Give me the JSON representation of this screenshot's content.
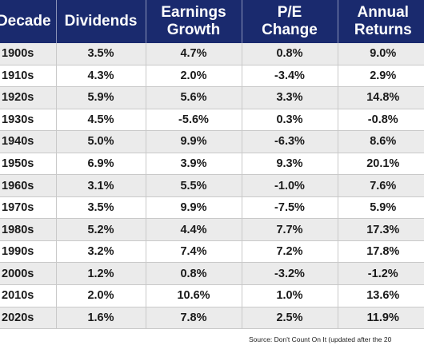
{
  "table": {
    "headers": [
      {
        "line1": "Decade",
        "line2": ""
      },
      {
        "line1": "Dividends",
        "line2": ""
      },
      {
        "line1": "Earnings",
        "line2": "Growth"
      },
      {
        "line1": "P/E",
        "line2": "Change"
      },
      {
        "line1": "Annual",
        "line2": "Returns"
      }
    ],
    "rows": [
      [
        "1900s",
        "3.5%",
        "4.7%",
        "0.8%",
        "9.0%"
      ],
      [
        "1910s",
        "4.3%",
        "2.0%",
        "-3.4%",
        "2.9%"
      ],
      [
        "1920s",
        "5.9%",
        "5.6%",
        "3.3%",
        "14.8%"
      ],
      [
        "1930s",
        "4.5%",
        "-5.6%",
        "0.3%",
        "-0.8%"
      ],
      [
        "1940s",
        "5.0%",
        "9.9%",
        "-6.3%",
        "8.6%"
      ],
      [
        "1950s",
        "6.9%",
        "3.9%",
        "9.3%",
        "20.1%"
      ],
      [
        "1960s",
        "3.1%",
        "5.5%",
        "-1.0%",
        "7.6%"
      ],
      [
        "1970s",
        "3.5%",
        "9.9%",
        "-7.5%",
        "5.9%"
      ],
      [
        "1980s",
        "5.2%",
        "4.4%",
        "7.7%",
        "17.3%"
      ],
      [
        "1990s",
        "3.2%",
        "7.4%",
        "7.2%",
        "17.8%"
      ],
      [
        "2000s",
        "1.2%",
        "0.8%",
        "-3.2%",
        "-1.2%"
      ],
      [
        "2010s",
        "2.0%",
        "10.6%",
        "1.0%",
        "13.6%"
      ],
      [
        "2020s",
        "1.6%",
        "7.8%",
        "2.5%",
        "11.9%"
      ]
    ]
  },
  "source": "Source: Don't Count On It (updated after the 20",
  "colors": {
    "header_bg": "#1a2a6e",
    "header_text": "#ffffff",
    "stripe": "#ebebeb",
    "grid": "#c9c9c9"
  }
}
